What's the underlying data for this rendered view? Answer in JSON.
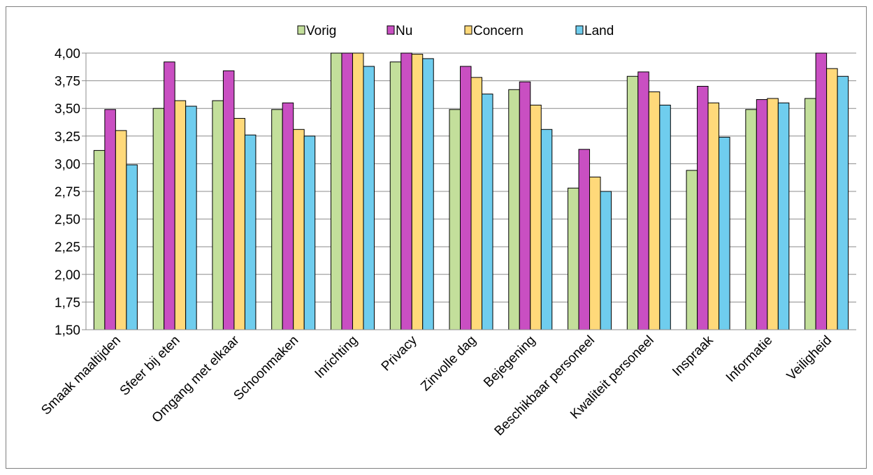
{
  "chart_data": {
    "type": "bar",
    "categories": [
      "Smaak maaltijden",
      "Sfeer bij eten",
      "Omgang met elkaar",
      "Schoonmaken",
      "Inrichting",
      "Privacy",
      "Zinvolle dag",
      "Bejegening",
      "Beschikbaar personeel",
      "Kwaliteit personeel",
      "Inspraak",
      "Informatie",
      "Veiligheid"
    ],
    "series": [
      {
        "name": "Vorig",
        "color": "#c3df9b",
        "values": [
          3.12,
          3.5,
          3.57,
          3.49,
          4.0,
          3.92,
          3.49,
          3.67,
          2.78,
          3.79,
          2.94,
          3.49,
          3.59
        ]
      },
      {
        "name": "Nu",
        "color": "#c94fc2",
        "values": [
          3.49,
          3.92,
          3.84,
          3.55,
          4.0,
          4.0,
          3.88,
          3.74,
          3.13,
          3.83,
          3.7,
          3.58,
          4.0
        ]
      },
      {
        "name": "Concern",
        "color": "#ffd97a",
        "values": [
          3.3,
          3.57,
          3.41,
          3.31,
          4.0,
          3.99,
          3.78,
          3.53,
          2.88,
          3.65,
          3.55,
          3.59,
          3.86
        ]
      },
      {
        "name": "Land",
        "color": "#6fcdee",
        "values": [
          2.99,
          3.52,
          3.26,
          3.25,
          3.88,
          3.95,
          3.63,
          3.31,
          2.75,
          3.53,
          3.24,
          3.55,
          3.79
        ]
      }
    ],
    "ylim": [
      1.5,
      4.0
    ],
    "yticks": [
      "1,50",
      "1,75",
      "2,00",
      "2,25",
      "2,50",
      "2,75",
      "3,00",
      "3,25",
      "3,50",
      "3,75",
      "4,00"
    ],
    "title": "",
    "xlabel": "",
    "ylabel": "",
    "grid": "horizontal",
    "legend_position": "top"
  }
}
